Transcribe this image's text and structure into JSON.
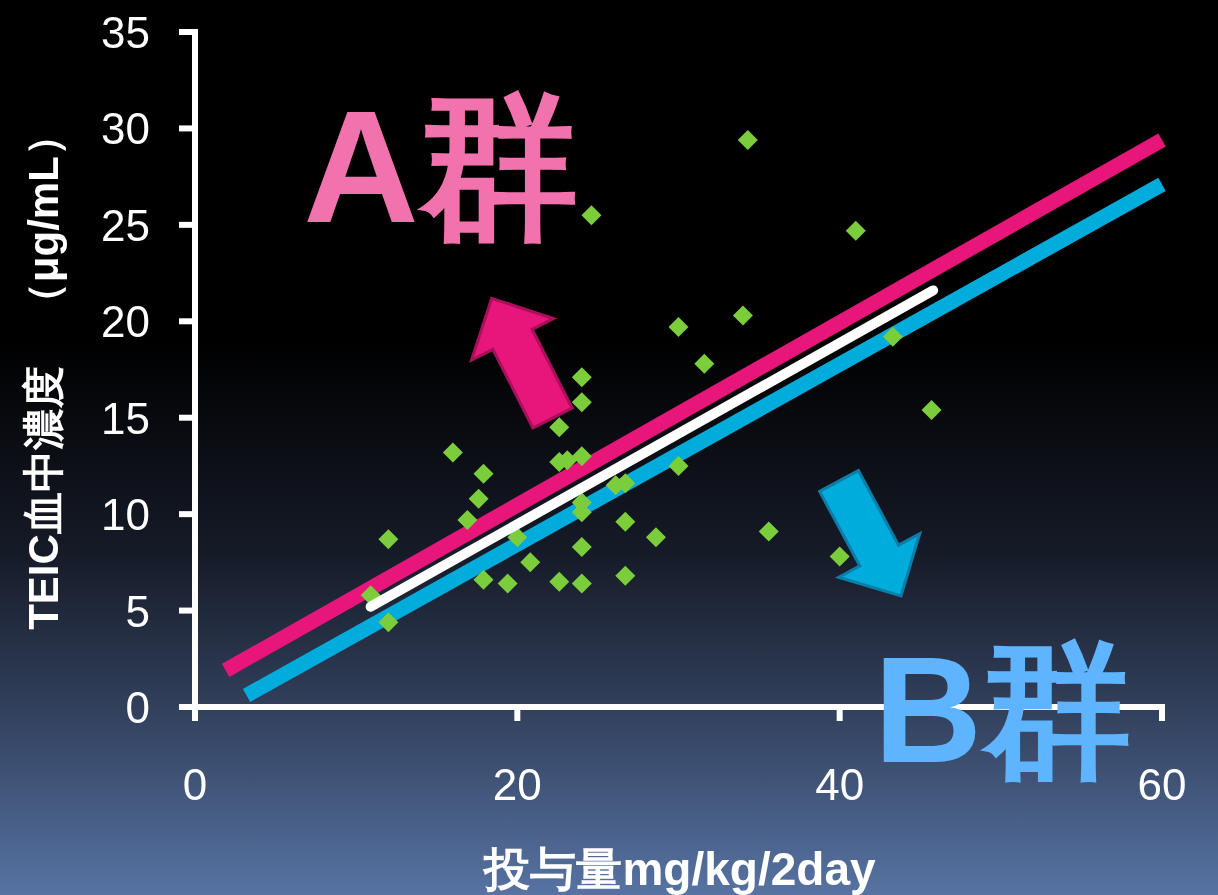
{
  "chart_data": {
    "type": "scatter",
    "xlabel": "投与量mg/kg/2day",
    "ylabel": "TEIC血中濃度　（μg/mL）",
    "xlim": [
      0,
      60
    ],
    "ylim": [
      0,
      35
    ],
    "xticks": [
      0,
      20,
      40,
      60
    ],
    "yticks": [
      0,
      5,
      10,
      15,
      20,
      25,
      30,
      35
    ],
    "annotations": [
      "A群",
      "B群"
    ],
    "series": [
      {
        "type": "line",
        "color": "#e8157a",
        "x": [
          1.9,
          60
        ],
        "values": [
          1.9,
          29.4
        ]
      },
      {
        "type": "line",
        "color": "#00acdc",
        "x": [
          3.2,
          60
        ],
        "values": [
          0.6,
          27.1
        ]
      },
      {
        "color": "#7ccd3c",
        "marker": "diamond",
        "x": [
          10.9,
          12.0,
          12.0,
          16.0,
          16.9,
          17.6,
          17.9,
          17.9,
          19.4,
          20.0,
          20.8,
          22.6,
          22.6,
          22.6,
          23.1,
          24.0,
          24.0,
          24.0,
          24.0,
          24.0,
          24.0,
          24.0,
          24.6,
          26.1,
          26.7,
          26.7,
          26.7,
          28.6,
          30.0,
          30.0,
          31.6,
          34.0,
          34.3,
          35.6,
          40.0,
          41.0,
          43.3,
          45.7
        ],
        "values": [
          5.8,
          8.7,
          4.4,
          13.2,
          9.7,
          10.8,
          12.1,
          6.6,
          6.4,
          8.8,
          7.5,
          6.5,
          14.5,
          12.7,
          12.8,
          17.1,
          15.8,
          13.0,
          10.6,
          10.1,
          8.3,
          6.4,
          25.5,
          11.5,
          11.6,
          9.6,
          6.8,
          8.8,
          19.7,
          12.5,
          17.8,
          20.3,
          29.4,
          9.1,
          7.8,
          24.7,
          19.2,
          15.4
        ]
      },
      {
        "type": "line",
        "color": "#ffffff",
        "x": [
          10.9,
          45.8
        ],
        "values": [
          5.2,
          21.6
        ]
      }
    ]
  }
}
